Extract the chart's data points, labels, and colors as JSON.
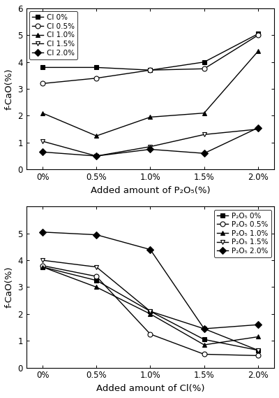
{
  "top_chart": {
    "x_labels": [
      "0%",
      "0.5%",
      "1.0%",
      "1.5%",
      "2.0%"
    ],
    "x_values": [
      0,
      0.5,
      1.0,
      1.5,
      2.0
    ],
    "series": [
      {
        "label": "Cl 0%",
        "values": [
          3.8,
          3.8,
          3.7,
          4.0,
          5.05
        ],
        "marker": "s",
        "fillstyle": "full"
      },
      {
        "label": "Cl 0.5%",
        "values": [
          3.2,
          3.4,
          3.7,
          3.75,
          5.0
        ],
        "marker": "o",
        "fillstyle": "none"
      },
      {
        "label": "Cl 1.0%",
        "values": [
          2.1,
          1.25,
          1.95,
          2.1,
          4.4
        ],
        "marker": "^",
        "fillstyle": "full"
      },
      {
        "label": "Cl 1.5%",
        "values": [
          1.05,
          0.5,
          0.85,
          1.3,
          1.5
        ],
        "marker": "v",
        "fillstyle": "none"
      },
      {
        "label": "Cl 2.0%",
        "values": [
          0.65,
          0.5,
          0.75,
          0.6,
          1.55
        ],
        "marker": "D",
        "fillstyle": "full"
      }
    ],
    "ylabel": "f-CaO(%)",
    "xlabel": "Added amount of P₂O₅(%)",
    "ylim": [
      0,
      6
    ],
    "yticks": [
      0,
      1,
      2,
      3,
      4,
      5,
      6
    ],
    "legend_loc": "upper left",
    "legend_bbox": null
  },
  "bottom_chart": {
    "x_labels": [
      "0%",
      "0.5%",
      "1.0%",
      "1.5%",
      "2.0%"
    ],
    "x_values": [
      0,
      0.5,
      1.0,
      1.5,
      2.0
    ],
    "series": [
      {
        "label": "P₂O₅ 0%",
        "values": [
          3.75,
          3.25,
          2.1,
          1.05,
          0.65
        ],
        "marker": "s",
        "fillstyle": "full"
      },
      {
        "label": "P₂O₅ 0.5%",
        "values": [
          3.8,
          3.4,
          1.25,
          0.5,
          0.45
        ],
        "marker": "o",
        "fillstyle": "none"
      },
      {
        "label": "P₂O₅ 1.0%",
        "values": [
          3.75,
          3.0,
          2.0,
          0.85,
          1.15
        ],
        "marker": "^",
        "fillstyle": "full"
      },
      {
        "label": "P₂O₅ 1.5%",
        "values": [
          4.0,
          3.75,
          2.1,
          1.45,
          0.65
        ],
        "marker": "v",
        "fillstyle": "none"
      },
      {
        "label": "P₂O₅ 2.0%",
        "values": [
          5.05,
          4.95,
          4.4,
          1.45,
          1.6
        ],
        "marker": "D",
        "fillstyle": "full"
      }
    ],
    "ylabel": "f-CaO(%)",
    "xlabel": "Added amount of Cl(%)",
    "ylim": [
      0,
      6
    ],
    "yticks": [
      0,
      1,
      2,
      3,
      4,
      5
    ],
    "legend_loc": "upper right",
    "legend_bbox": null
  },
  "figure_bgcolor": "white",
  "axes_bgcolor": "white",
  "markersize": 5,
  "linewidth": 1.0
}
